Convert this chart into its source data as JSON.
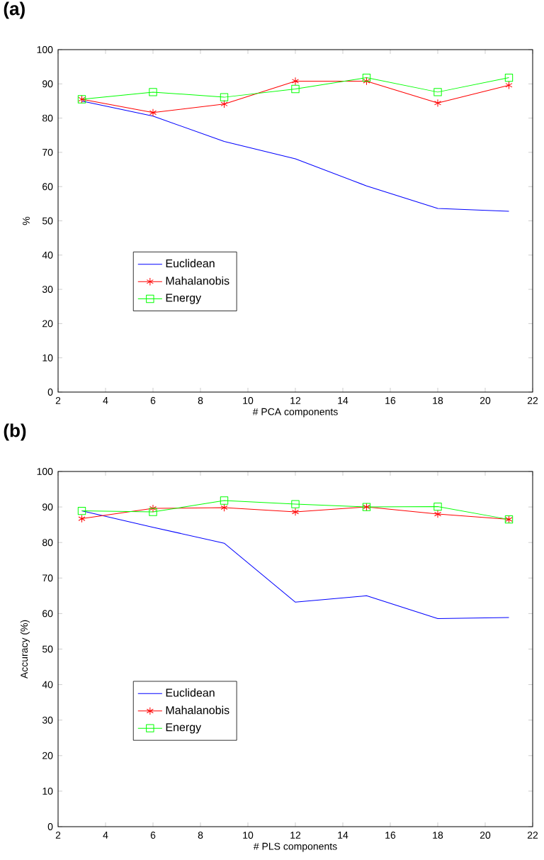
{
  "chart_data": [
    {
      "type": "line",
      "title": "(a)",
      "xlabel": "# PCA components",
      "ylabel": "%",
      "x": [
        3,
        6,
        9,
        12,
        15,
        18,
        21
      ],
      "xlim": [
        2,
        22
      ],
      "xticks": [
        2,
        4,
        6,
        8,
        10,
        12,
        14,
        16,
        18,
        20,
        22
      ],
      "ylim": [
        0,
        100
      ],
      "yticks": [
        0,
        10,
        20,
        30,
        40,
        50,
        60,
        70,
        80,
        90,
        100
      ],
      "legend": "left",
      "series": [
        {
          "name": "Euclidean",
          "color": "#0000ff",
          "marker": "none",
          "values": [
            85.0,
            80.6,
            73.2,
            68.1,
            60.2,
            53.6,
            52.8
          ]
        },
        {
          "name": "Mahalanobis",
          "color": "#ff0000",
          "marker": "cross",
          "values": [
            85.5,
            81.6,
            84.1,
            90.8,
            90.8,
            84.4,
            89.6
          ]
        },
        {
          "name": "Energy",
          "color": "#00ff00",
          "marker": "square",
          "values": [
            85.5,
            87.6,
            86.1,
            88.5,
            91.8,
            87.6,
            91.8
          ]
        }
      ]
    },
    {
      "type": "line",
      "title": "(b)",
      "xlabel": "# PLS components",
      "ylabel": "Accuracy (%)",
      "x": [
        3,
        6,
        9,
        12,
        15,
        18,
        21
      ],
      "xlim": [
        2,
        22
      ],
      "xticks": [
        2,
        4,
        6,
        8,
        10,
        12,
        14,
        16,
        18,
        20,
        22
      ],
      "ylim": [
        0,
        100
      ],
      "yticks": [
        0,
        10,
        20,
        30,
        40,
        50,
        60,
        70,
        80,
        90,
        100
      ],
      "legend": "left",
      "series": [
        {
          "name": "Euclidean",
          "color": "#0000ff",
          "marker": "none",
          "values": [
            88.9,
            84.3,
            79.8,
            63.2,
            65.0,
            58.6,
            58.9
          ]
        },
        {
          "name": "Mahalanobis",
          "color": "#ff0000",
          "marker": "cross",
          "values": [
            86.7,
            89.6,
            89.8,
            88.6,
            90.0,
            88.0,
            86.5
          ]
        },
        {
          "name": "Energy",
          "color": "#00ff00",
          "marker": "square",
          "values": [
            88.9,
            88.6,
            91.8,
            90.8,
            90.0,
            90.1,
            86.5
          ]
        }
      ]
    }
  ]
}
